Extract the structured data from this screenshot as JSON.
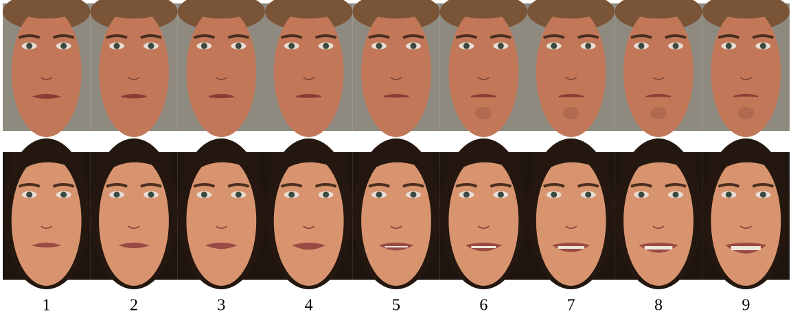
{
  "labels": [
    1,
    2,
    3,
    4,
    5,
    6,
    7,
    8,
    9
  ]
}
